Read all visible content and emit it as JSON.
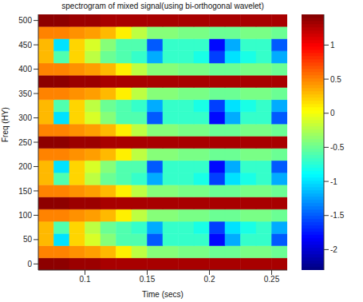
{
  "chart_data": {
    "type": "heatmap",
    "title": "spectrogram of mixed signal(using bi-orthogonal wavelet)",
    "x_label": "Time (secs)",
    "y_label": "Freq (HY)",
    "color": "jet",
    "x": [
      0.06875,
      0.08125,
      0.09375,
      0.10625,
      0.11875,
      0.13125,
      0.14375,
      0.15625,
      0.16875,
      0.18125,
      0.19375,
      0.20625,
      0.21875,
      0.23125,
      0.24375,
      0.25625
    ],
    "y": [
      0,
      25,
      50,
      75,
      100,
      125,
      150,
      175,
      200,
      225,
      250,
      275,
      300,
      325,
      350,
      375,
      400,
      425,
      450,
      475,
      500
    ],
    "z": [
      [
        1.4,
        1.4,
        1.35,
        1.35,
        1.3,
        1.3,
        1.3,
        1.3,
        1.3,
        1.3,
        1.3,
        1.3,
        1.3,
        1.3,
        1.3,
        1.3
      ],
      [
        0.5,
        0.5,
        0.45,
        0.4,
        0.3,
        0.1,
        -0.2,
        -0.4,
        -0.4,
        -0.45,
        -0.45,
        -0.5,
        -0.5,
        -0.45,
        -0.45,
        -0.5
      ],
      [
        0.3,
        -1.0,
        0.2,
        -0.1,
        -0.4,
        -0.6,
        -0.6,
        -1.5,
        -0.7,
        -0.7,
        -0.7,
        -1.8,
        -1.2,
        -0.7,
        -0.7,
        -1.5
      ],
      [
        0.3,
        -0.6,
        0.2,
        -0.2,
        -0.5,
        -0.6,
        -0.7,
        -1.2,
        -0.7,
        -0.7,
        -0.8,
        -1.6,
        -1.0,
        -0.8,
        -0.7,
        -1.2
      ],
      [
        0.5,
        0.5,
        0.45,
        0.4,
        0.3,
        0.1,
        -0.2,
        -0.4,
        -0.4,
        -0.45,
        -0.45,
        -0.5,
        -0.5,
        -0.45,
        -0.45,
        -0.5
      ],
      [
        1.4,
        1.4,
        1.35,
        1.35,
        1.3,
        1.3,
        1.3,
        1.3,
        1.3,
        1.3,
        1.3,
        1.3,
        1.3,
        1.3,
        1.3,
        1.3
      ],
      [
        0.5,
        0.5,
        0.45,
        0.4,
        0.3,
        0.1,
        -0.2,
        -0.4,
        -0.4,
        -0.45,
        -0.45,
        -0.5,
        -0.5,
        -0.45,
        -0.45,
        -0.5
      ],
      [
        0.3,
        -0.6,
        0.2,
        -0.2,
        -0.5,
        -0.6,
        -0.7,
        -1.2,
        -0.7,
        -0.7,
        -0.8,
        -1.6,
        -1.0,
        -0.8,
        -0.7,
        -1.2
      ],
      [
        0.3,
        -1.0,
        0.2,
        -0.1,
        -0.4,
        -0.6,
        -0.6,
        -1.5,
        -0.7,
        -0.7,
        -0.7,
        -1.8,
        -1.2,
        -0.7,
        -0.7,
        -1.5
      ],
      [
        0.5,
        0.5,
        0.45,
        0.4,
        0.3,
        0.1,
        -0.2,
        -0.4,
        -0.4,
        -0.45,
        -0.45,
        -0.5,
        -0.5,
        -0.45,
        -0.45,
        -0.5
      ],
      [
        1.4,
        1.4,
        1.35,
        1.35,
        1.3,
        1.3,
        1.3,
        1.3,
        1.3,
        1.3,
        1.3,
        1.3,
        1.3,
        1.3,
        1.3,
        1.3
      ],
      [
        0.5,
        0.5,
        0.45,
        0.4,
        0.3,
        0.1,
        -0.2,
        -0.4,
        -0.4,
        -0.45,
        -0.45,
        -0.5,
        -0.5,
        -0.45,
        -0.45,
        -0.5
      ],
      [
        0.3,
        -1.0,
        0.2,
        -0.1,
        -0.4,
        -0.6,
        -0.6,
        -1.5,
        -0.7,
        -0.7,
        -0.7,
        -1.8,
        -1.2,
        -0.7,
        -0.7,
        -1.5
      ],
      [
        0.3,
        -0.6,
        0.2,
        -0.2,
        -0.5,
        -0.6,
        -0.7,
        -1.2,
        -0.7,
        -0.7,
        -0.8,
        -1.6,
        -1.0,
        -0.8,
        -0.7,
        -1.2
      ],
      [
        0.5,
        0.5,
        0.45,
        0.4,
        0.3,
        0.1,
        -0.2,
        -0.4,
        -0.4,
        -0.45,
        -0.45,
        -0.5,
        -0.5,
        -0.45,
        -0.45,
        -0.5
      ],
      [
        1.4,
        1.4,
        1.35,
        1.35,
        1.3,
        1.3,
        1.3,
        1.3,
        1.3,
        1.3,
        1.3,
        1.3,
        1.3,
        1.3,
        1.3,
        1.3
      ],
      [
        0.5,
        0.5,
        0.45,
        0.4,
        0.3,
        0.1,
        -0.2,
        -0.4,
        -0.4,
        -0.45,
        -0.45,
        -0.5,
        -0.5,
        -0.45,
        -0.45,
        -0.5
      ],
      [
        0.3,
        -0.6,
        0.2,
        -0.2,
        -0.5,
        -0.6,
        -0.7,
        -1.2,
        -0.7,
        -0.7,
        -0.8,
        -1.6,
        -1.0,
        -0.8,
        -0.7,
        -1.2
      ],
      [
        0.3,
        -1.0,
        0.2,
        -0.1,
        -0.4,
        -0.6,
        -0.6,
        -1.5,
        -0.7,
        -0.7,
        -0.7,
        -1.8,
        -1.2,
        -0.7,
        -0.7,
        -1.5
      ],
      [
        0.5,
        0.5,
        0.45,
        0.4,
        0.3,
        0.1,
        -0.2,
        -0.4,
        -0.4,
        -0.45,
        -0.45,
        -0.5,
        -0.5,
        -0.45,
        -0.45,
        -0.5
      ],
      [
        1.4,
        1.4,
        1.35,
        1.35,
        1.3,
        1.3,
        1.3,
        1.3,
        1.3,
        1.3,
        1.3,
        1.3,
        1.3,
        1.3,
        1.3,
        1.3
      ]
    ],
    "xlim": [
      0.0625,
      0.2625
    ],
    "ylim": [
      -12.5,
      512.5
    ],
    "xticks": [
      0.1,
      0.15,
      0.2,
      0.25
    ],
    "yticks": [
      0,
      50,
      100,
      150,
      200,
      250,
      300,
      350,
      400,
      450,
      500
    ],
    "colorbar": {
      "range": [
        -2.3,
        1.45
      ],
      "ticks": [
        -2,
        -1.5,
        -1,
        -0.5,
        0,
        0.5,
        1
      ]
    }
  }
}
